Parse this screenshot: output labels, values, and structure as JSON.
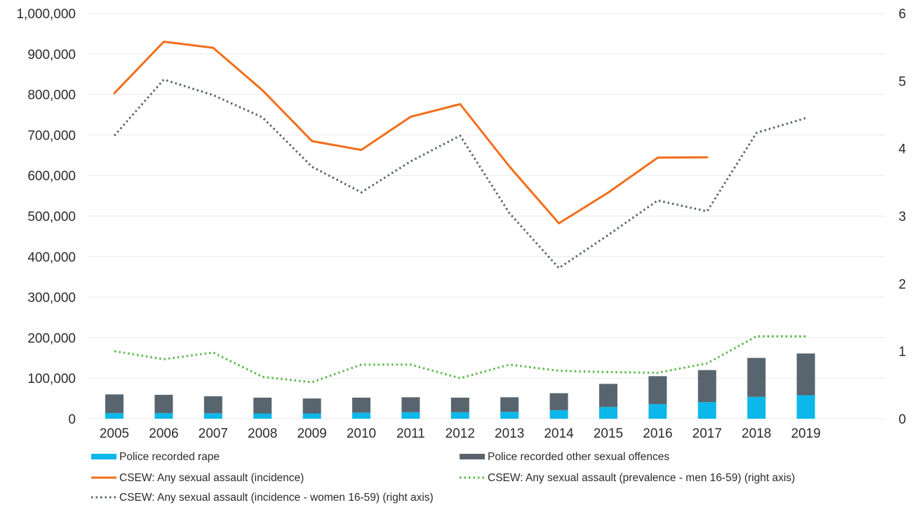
{
  "chart_data": {
    "type": "bar",
    "title": "",
    "xlabel": "",
    "ylabel": "",
    "categories": [
      "2005",
      "2006",
      "2007",
      "2008",
      "2009",
      "2010",
      "2011",
      "2012",
      "2013",
      "2014",
      "2015",
      "2016",
      "2017",
      "2018",
      "2019"
    ],
    "ylim_left": [
      0,
      1000000
    ],
    "ylim_right": [
      0,
      6
    ],
    "left_ticks": [
      "0",
      "100,000",
      "200,000",
      "300,000",
      "400,000",
      "500,000",
      "600,000",
      "700,000",
      "800,000",
      "900,000",
      "1,000,000"
    ],
    "right_ticks": [
      "0",
      "1",
      "2",
      "3",
      "4",
      "5",
      "6"
    ],
    "grid": true,
    "legend_position": "bottom",
    "colors": {
      "rape": "#0cb8ea",
      "other": "#58656f",
      "incidence": "#f36d19",
      "prevalence_men": "#5ab84a",
      "incidence_women": "#58656f",
      "grid": "#e8e8e8"
    },
    "series": [
      {
        "key": "rape",
        "name": "Police recorded rape",
        "kind": "stacked-bar",
        "axis": "left",
        "values": [
          14000,
          14000,
          13500,
          13000,
          13000,
          15000,
          16000,
          16000,
          17000,
          21000,
          29000,
          36000,
          41000,
          54000,
          58000
        ]
      },
      {
        "key": "other",
        "name": "Police recorded other sexual offences",
        "kind": "stacked-bar",
        "axis": "left",
        "values": [
          46000,
          45000,
          42000,
          39000,
          37000,
          37000,
          37000,
          36000,
          36000,
          42000,
          57000,
          69000,
          79000,
          96000,
          103000
        ]
      },
      {
        "key": "incidence",
        "name": "CSEW: Any sexual assault (incidence)",
        "kind": "line",
        "axis": "left",
        "values": [
          803000,
          930000,
          915000,
          810000,
          685000,
          663000,
          745000,
          776000,
          622000,
          482000,
          558000,
          644000,
          645000,
          null,
          null
        ]
      },
      {
        "key": "prevalence_men",
        "name": "CSEW: Any sexual assault (prevalence - men 16-59) (right axis)",
        "kind": "dotted-line",
        "axis": "right",
        "values": [
          1.0,
          0.88,
          0.98,
          0.62,
          0.54,
          0.8,
          0.8,
          0.6,
          0.8,
          0.71,
          0.69,
          0.68,
          0.82,
          1.22,
          1.22
        ]
      },
      {
        "key": "incidence_women",
        "name": "CSEW: Any sexual assault (incidence - women 16-59) (right axis)",
        "kind": "dotted-line",
        "axis": "right",
        "values": [
          4.19,
          5.02,
          4.79,
          4.46,
          3.73,
          3.35,
          3.81,
          4.19,
          3.04,
          2.23,
          2.72,
          3.23,
          3.07,
          4.23,
          4.45
        ]
      }
    ]
  }
}
